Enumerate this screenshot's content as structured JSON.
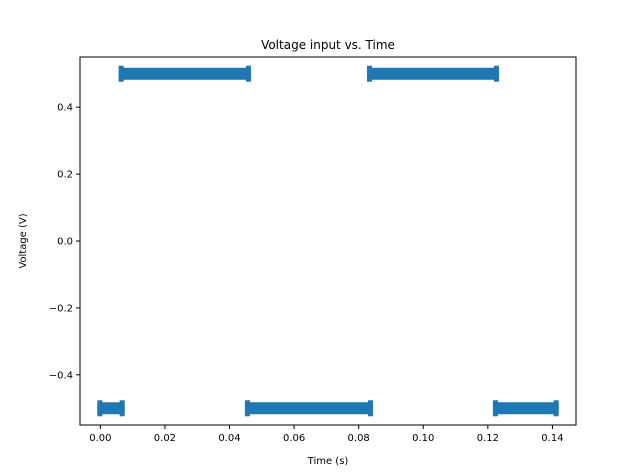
{
  "chart_data": {
    "type": "scatter",
    "title": "Voltage input vs. Time",
    "xlabel": "Time (s)",
    "ylabel": "Voltage (V)",
    "xlim": [
      -0.0063,
      0.1473
    ],
    "ylim": [
      -0.55,
      0.55
    ],
    "xticks": [
      0.0,
      0.02,
      0.04,
      0.06,
      0.08,
      0.1,
      0.12,
      0.14
    ],
    "xtick_labels": [
      "0.00",
      "0.02",
      "0.04",
      "0.06",
      "0.08",
      "0.10",
      "0.12",
      "0.14"
    ],
    "yticks": [
      -0.4,
      -0.2,
      0.0,
      0.2,
      0.4
    ],
    "ytick_labels": [
      "−0.4",
      "−0.2",
      "0.0",
      "0.2",
      "0.4"
    ],
    "grid": false,
    "series": [
      {
        "color": "#1f77b4",
        "marker": "square",
        "segments": [
          {
            "x_start": 0.0,
            "x_end": 0.0066,
            "y": -0.5
          },
          {
            "x_start": 0.0066,
            "x_end": 0.0457,
            "y": 0.5
          },
          {
            "x_start": 0.0457,
            "x_end": 0.0835,
            "y": -0.5
          },
          {
            "x_start": 0.0835,
            "x_end": 0.1225,
            "y": 0.5
          },
          {
            "x_start": 0.1225,
            "x_end": 0.141,
            "y": -0.5
          }
        ]
      }
    ]
  }
}
